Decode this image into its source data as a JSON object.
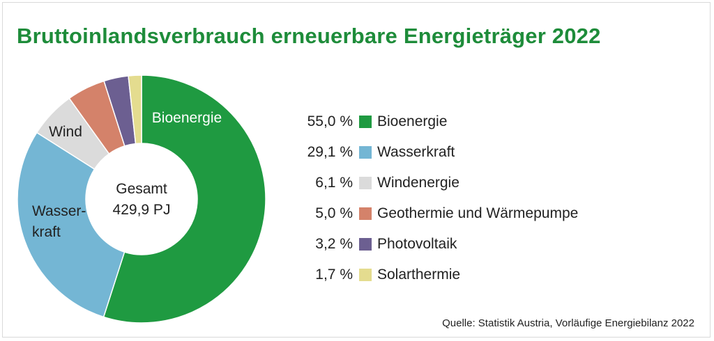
{
  "chart_data": {
    "type": "pie",
    "title": "Bruttoinlandsverbrauch erneuerbare Energieträger 2022",
    "center_label": [
      "Gesamt",
      "429,9 PJ"
    ],
    "slices": [
      {
        "name": "Bioenergie",
        "value": 55.0,
        "value_label": "55,0 %",
        "slice_label": [
          "Bioenergie"
        ],
        "color": "#1f9a41"
      },
      {
        "name": "Wasserkraft",
        "value": 29.1,
        "value_label": "29,1 %",
        "slice_label": [
          "Wasser-",
          "kraft"
        ],
        "color": "#74b6d4"
      },
      {
        "name": "Windenergie",
        "value": 6.1,
        "value_label": "6,1 %",
        "slice_label": [
          "Wind"
        ],
        "color": "#dbdbdb"
      },
      {
        "name": "Geothermie und Wärmepumpe",
        "value": 5.0,
        "value_label": "5,0 %",
        "slice_label": [],
        "color": "#d4826a"
      },
      {
        "name": "Photovoltaik",
        "value": 3.2,
        "value_label": "3,2 %",
        "slice_label": [],
        "color": "#6c5f91"
      },
      {
        "name": "Solarthermie",
        "value": 1.7,
        "value_label": "1,7 %",
        "slice_label": [],
        "color": "#e4dc8f"
      }
    ],
    "legend_position": "right",
    "source": "Quelle: Statistik Austria, Vorläufige Energiebilanz 2022"
  },
  "colors": {
    "title": "#1e8c3a",
    "slice_label_on_dark": "#ffffff",
    "slice_label_on_light": "#222222"
  }
}
